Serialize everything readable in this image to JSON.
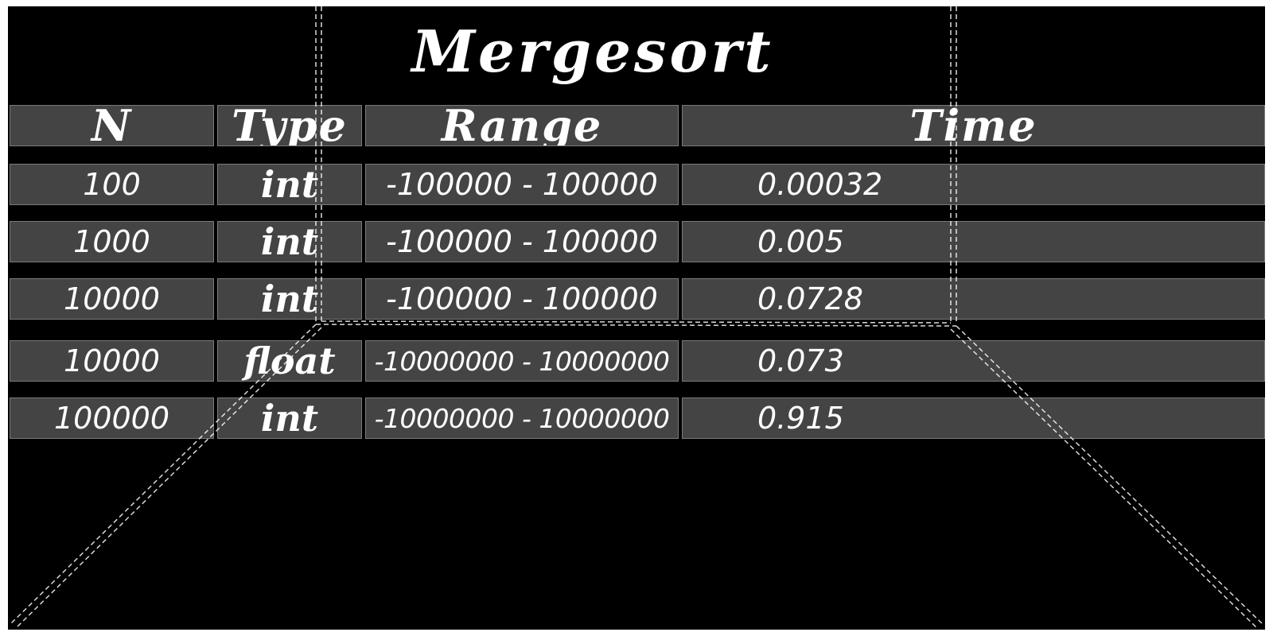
{
  "title": "Mergesort",
  "table": {
    "headers": [
      "N",
      "Type",
      "Range",
      "Time"
    ],
    "rows": [
      {
        "n": "100",
        "type": "int",
        "range": "-100000 - 100000",
        "time": "0.00032"
      },
      {
        "n": "1000",
        "type": "int",
        "range": "-100000 - 100000",
        "time": "0.005"
      },
      {
        "n": "10000",
        "type": "int",
        "range": "-100000 - 100000",
        "time": "0.0728"
      },
      {
        "n": "10000",
        "type": "float",
        "range": "-10000000 - 10000000",
        "time": "0.073"
      },
      {
        "n": "100000",
        "type": "int",
        "range": "-10000000 - 10000000",
        "time": "0.915"
      }
    ]
  },
  "colors": {
    "background": "#000000",
    "cell": "#444444",
    "text": "#ffffff"
  }
}
